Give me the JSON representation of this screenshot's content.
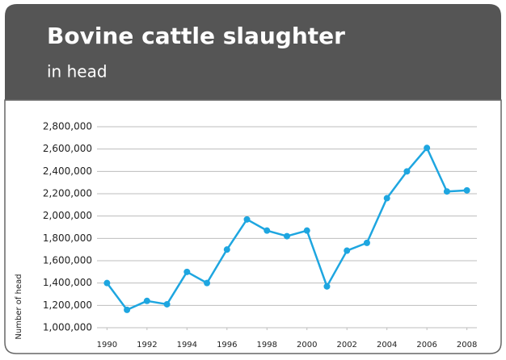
{
  "chart_data": {
    "type": "line",
    "title": "Bovine cattle slaughter",
    "subtitle": "in head",
    "y_label": "Number of head",
    "x": [
      1990,
      1991,
      1992,
      1993,
      1994,
      1995,
      1996,
      1997,
      1998,
      1999,
      2000,
      2001,
      2002,
      2003,
      2004,
      2005,
      2006,
      2007,
      2008
    ],
    "series": [
      {
        "name": "Bovine cattle slaughter",
        "color": "#1ea6e0",
        "values": [
          1400000,
          1160000,
          1240000,
          1210000,
          1500000,
          1400000,
          1700000,
          1970000,
          1870000,
          1820000,
          1870000,
          1370000,
          1690000,
          1760000,
          2160000,
          2400000,
          2610000,
          2220000,
          2230000
        ]
      }
    ],
    "xlim": [
      1989.5,
      2008.5
    ],
    "xticks": [
      1990,
      1992,
      1994,
      1996,
      1998,
      2000,
      2002,
      2004,
      2006,
      2008
    ],
    "ylim": [
      1000000,
      2800000
    ],
    "yticks": [
      {
        "value": 1000000,
        "label": "1,000,000"
      },
      {
        "value": 1200000,
        "label": "1,200,000"
      },
      {
        "value": 1400000,
        "label": "1,400,000"
      },
      {
        "value": 1600000,
        "label": "1,600,000"
      },
      {
        "value": 1800000,
        "label": "1,800,000"
      },
      {
        "value": 2000000,
        "label": "2,000,000"
      },
      {
        "value": 2200000,
        "label": "2,200,000"
      },
      {
        "value": 2400000,
        "label": "2,400,000"
      },
      {
        "value": 2600000,
        "label": "2,600,000"
      },
      {
        "value": 2800000,
        "label": "2,800,000"
      }
    ],
    "grid": true
  }
}
